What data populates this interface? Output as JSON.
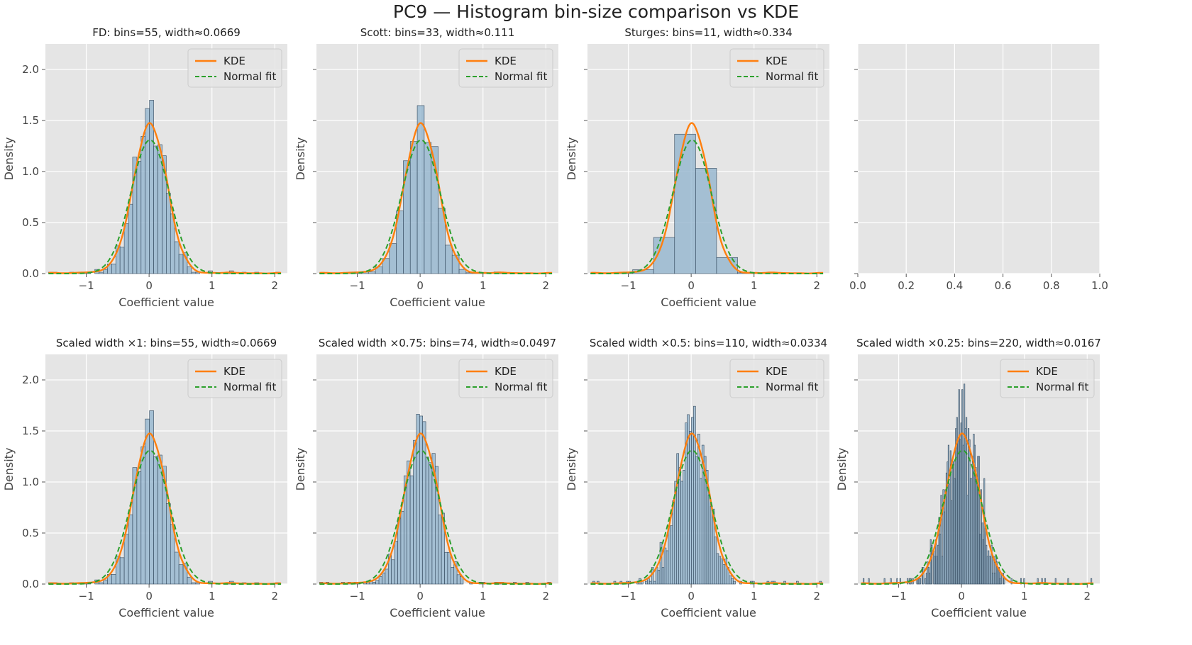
{
  "figure": {
    "title": "PC9 — Histogram bin-size comparison vs KDE",
    "colors": {
      "panel_bg": "#E5E5E5",
      "grid": "#FFFFFF",
      "bar_fill": "#8EB1CC",
      "bar_edge": "#33485C",
      "kde": "#FF7F0E",
      "normal": "#2CA02C",
      "text": "#444444"
    },
    "legend_labels": [
      "KDE",
      "Normal fit"
    ]
  },
  "chart_data": [
    {
      "type": "bar",
      "title": "FD: bins=55, width≈0.0669",
      "xlabel": "Coefficient value",
      "ylabel": "Density",
      "xlim": [
        -1.65,
        2.2
      ],
      "ylim": [
        0,
        2.25
      ],
      "xticks": [
        -1,
        0,
        1,
        2
      ],
      "yticks": [
        0.0,
        0.5,
        1.0,
        1.5,
        2.0
      ],
      "legend": "top-right",
      "bins": 55,
      "bin_width": 0.0669,
      "hist_start": -1.6,
      "series": [
        {
          "name": "KDE",
          "type": "line"
        },
        {
          "name": "Normal fit",
          "type": "line",
          "style": "dashed"
        }
      ]
    },
    {
      "type": "bar",
      "title": "Scott: bins=33, width≈0.111",
      "xlabel": "Coefficient value",
      "ylabel": "Density",
      "xlim": [
        -1.65,
        2.2
      ],
      "ylim": [
        0,
        2.25
      ],
      "xticks": [
        -1,
        0,
        1,
        2
      ],
      "yticks": [
        0.0,
        0.5,
        1.0,
        1.5,
        2.0
      ],
      "legend": "top-right",
      "bins": 33,
      "bin_width": 0.111,
      "hist_start": -1.6,
      "series": [
        {
          "name": "KDE",
          "type": "line"
        },
        {
          "name": "Normal fit",
          "type": "line",
          "style": "dashed"
        }
      ]
    },
    {
      "type": "bar",
      "title": "Sturges: bins=11, width≈0.334",
      "xlabel": "Coefficient value",
      "ylabel": "Density",
      "xlim": [
        -1.65,
        2.2
      ],
      "ylim": [
        0,
        2.25
      ],
      "xticks": [
        -1,
        0,
        1,
        2
      ],
      "yticks": [
        0.0,
        0.5,
        1.0,
        1.5,
        2.0
      ],
      "legend": "top-right",
      "bins": 11,
      "bin_width": 0.334,
      "hist_start": -1.6,
      "series": [
        {
          "name": "KDE",
          "type": "line"
        },
        {
          "name": "Normal fit",
          "type": "line",
          "style": "dashed"
        }
      ]
    },
    {
      "type": "empty",
      "xlim": [
        0,
        1
      ],
      "ylim": [
        0,
        2.25
      ],
      "xticks": [
        0.0,
        0.2,
        0.4,
        0.6,
        0.8,
        1.0
      ]
    },
    {
      "type": "bar",
      "title": "Scaled width ×1: bins=55, width≈0.0669",
      "xlabel": "Coefficient value",
      "ylabel": "Density",
      "xlim": [
        -1.65,
        2.2
      ],
      "ylim": [
        0,
        2.25
      ],
      "xticks": [
        -1,
        0,
        1,
        2
      ],
      "yticks": [
        0.0,
        0.5,
        1.0,
        1.5,
        2.0
      ],
      "legend": "top-right",
      "bins": 55,
      "bin_width": 0.0669,
      "hist_start": -1.6,
      "series": [
        {
          "name": "KDE",
          "type": "line"
        },
        {
          "name": "Normal fit",
          "type": "line",
          "style": "dashed"
        }
      ]
    },
    {
      "type": "bar",
      "title": "Scaled width ×0.75: bins=74, width≈0.0497",
      "xlabel": "Coefficient value",
      "ylabel": "Density",
      "xlim": [
        -1.65,
        2.2
      ],
      "ylim": [
        0,
        2.25
      ],
      "xticks": [
        -1,
        0,
        1,
        2
      ],
      "yticks": [
        0.0,
        0.5,
        1.0,
        1.5,
        2.0
      ],
      "legend": "top-right",
      "bins": 74,
      "bin_width": 0.0497,
      "hist_start": -1.6,
      "series": [
        {
          "name": "KDE",
          "type": "line"
        },
        {
          "name": "Normal fit",
          "type": "line",
          "style": "dashed"
        }
      ]
    },
    {
      "type": "bar",
      "title": "Scaled width ×0.5: bins=110, width≈0.0334",
      "xlabel": "Coefficient value",
      "ylabel": "Density",
      "xlim": [
        -1.65,
        2.2
      ],
      "ylim": [
        0,
        2.25
      ],
      "xticks": [
        -1,
        0,
        1,
        2
      ],
      "yticks": [
        0.0,
        0.5,
        1.0,
        1.5,
        2.0
      ],
      "legend": "top-right",
      "bins": 110,
      "bin_width": 0.0334,
      "hist_start": -1.6,
      "series": [
        {
          "name": "KDE",
          "type": "line"
        },
        {
          "name": "Normal fit",
          "type": "line",
          "style": "dashed"
        }
      ]
    },
    {
      "type": "bar",
      "title": "Scaled width ×0.25: bins=220, width≈0.0167",
      "xlabel": "Coefficient value",
      "ylabel": "Density",
      "xlim": [
        -1.65,
        2.2
      ],
      "ylim": [
        0,
        2.25
      ],
      "xticks": [
        -1,
        0,
        1,
        2
      ],
      "yticks": [
        0.0,
        0.5,
        1.0,
        1.5,
        2.0
      ],
      "legend": "top-right",
      "bins": 220,
      "bin_width": 0.0167,
      "hist_start": -1.6,
      "series": [
        {
          "name": "KDE",
          "type": "line"
        },
        {
          "name": "Normal fit",
          "type": "line",
          "style": "dashed"
        }
      ]
    }
  ]
}
